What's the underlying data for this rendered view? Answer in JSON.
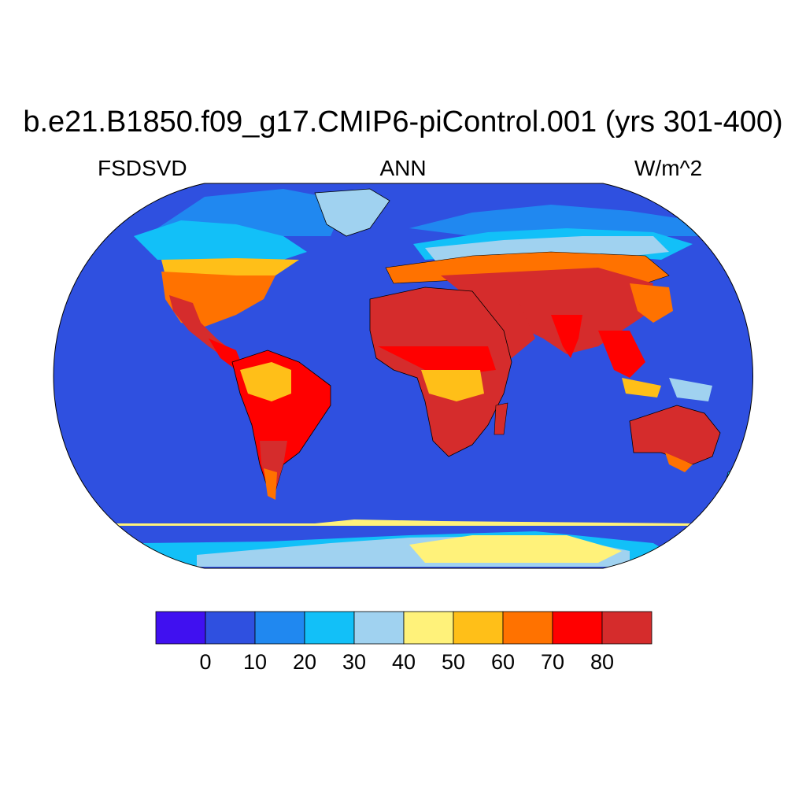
{
  "title": "b.e21.B1850.f09_g17.CMIP6-piControl.001 (yrs 301-400)",
  "subtitle_left": "FSDSVD",
  "subtitle_center": "ANN",
  "subtitle_right": "W/m^2",
  "colorbar": {
    "colors": [
      "#4010f0",
      "#2f50e0",
      "#2088f0",
      "#12c0f8",
      "#a0d2f0",
      "#fff27a",
      "#ffbf18",
      "#ff7200",
      "#ff0000",
      "#d52c2c"
    ],
    "tick_labels": [
      "0",
      "10",
      "20",
      "30",
      "40",
      "50",
      "60",
      "70",
      "80"
    ]
  },
  "map": {
    "projection": "Robinson",
    "ocean_color": "#2f50e0",
    "coastline_color": "#000000"
  }
}
